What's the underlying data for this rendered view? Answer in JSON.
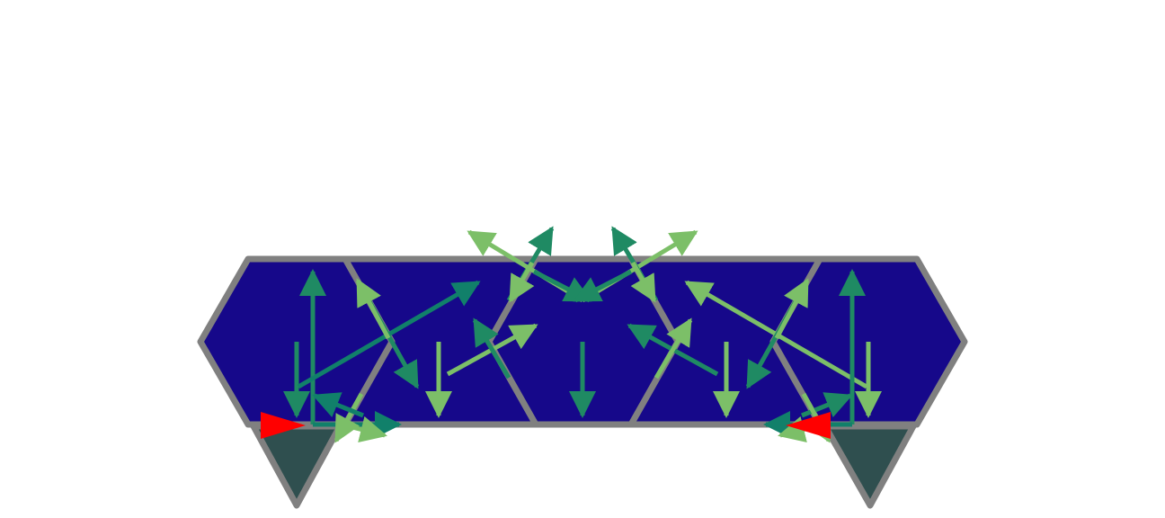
{
  "colors": {
    "background": "#ffffff",
    "truss_fill": "#16088a",
    "member_stroke": "#808080",
    "support_fill": "#2f4f4f",
    "arrow_dark": "#1f8a63",
    "arrow_light": "#7cbf68",
    "arrow_teal": "#11806a",
    "load_arrow": "#ff0000"
  },
  "diagram": {
    "description_visible_text": ""
  }
}
